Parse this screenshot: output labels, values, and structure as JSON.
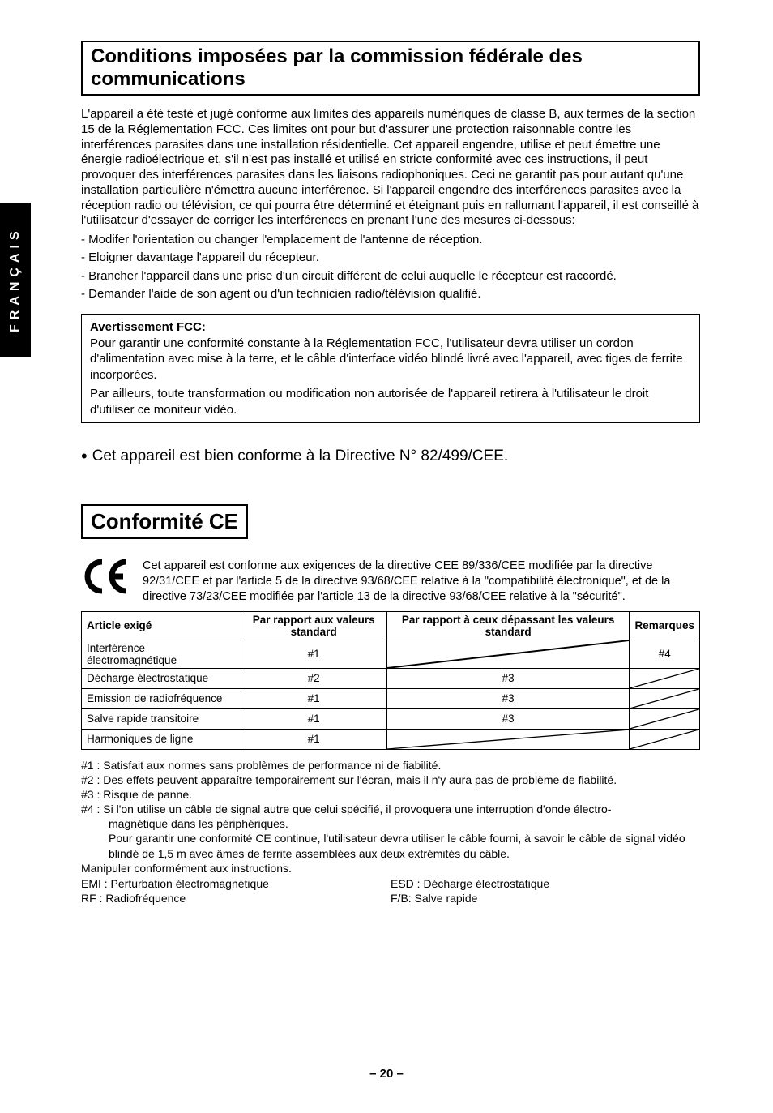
{
  "sideTab": "FRANÇAIS",
  "section1": {
    "title": "Conditions imposées par la commission fédérale des communications",
    "para": "L'appareil a été testé et jugé conforme aux limites des appareils numériques de classe B, aux termes de la section 15 de la Réglementation FCC. Ces limites ont pour but d'assurer une protection raisonnable contre les interférences parasites dans une installation résidentielle. Cet appareil engendre, utilise et peut émettre une énergie radioélectrique et, s'il n'est pas installé et utilisé en stricte conformité avec ces instructions, il peut provoquer des interférences parasites dans les liaisons radiophoniques. Ceci ne garantit pas pour autant qu'une installation particulière n'émettra aucune interférence. Si l'appareil engendre des interférences parasites avec la réception radio ou télévision, ce qui pourra être déterminé et éteignant puis en rallumant l'appareil, il est conseillé à l'utilisateur d'essayer de corriger les interférences en prenant l'une des mesures ci-dessous:",
    "bullets": [
      "- Modifer l'orientation ou changer l'emplacement de l'antenne de réception.",
      "- Eloigner davantage l'appareil du récepteur.",
      "- Brancher l'appareil dans une prise d'un circuit différent de celui auquelle le récepteur est raccordé.",
      "- Demander l'aide de son agent ou d'un technicien radio/télévision qualifié."
    ],
    "fccBox": {
      "title": "Avertissement FCC:",
      "p1": "Pour garantir une conformité constante à la Réglementation FCC, l'utilisateur devra utiliser un cordon d'alimentation avec mise à la terre, et le câble d'interface vidéo blindé livré avec l'appareil, avec tiges de ferrite incorporées.",
      "p2": "Par ailleurs, toute transformation ou modification non autorisée de l'appareil retirera à l'utilisateur le droit d'utiliser ce moniteur vidéo."
    }
  },
  "directive": "Cet appareil est bien conforme à la Directive N° 82/499/CEE.",
  "section2": {
    "title": "Conformité CE",
    "ceText": "Cet appareil est conforme aux exigences de la directive CEE 89/336/CEE modifiée par la directive 92/31/CEE et par l'article 5 de la directive 93/68/CEE relative à la \"compatibilité électronique\", et de la directive 73/23/CEE modifiée par l'article 13 de la directive 93/68/CEE relative à la \"sécurité\".",
    "table": {
      "columns": [
        "Article exigé",
        "Par rapport aux valeurs standard",
        "Par rapport à ceux dépassant les valeurs standard",
        "Remarques"
      ],
      "colWidthsPct": [
        26,
        24,
        40,
        10
      ],
      "rows": [
        {
          "c0": "Interférence électromagnétique",
          "c1": "#1",
          "c2": "diag",
          "c3": "#4"
        },
        {
          "c0": "Décharge électrostatique",
          "c1": "#2",
          "c2": "#3",
          "c3": "diag"
        },
        {
          "c0": "Emission de radiofréquence",
          "c1": "#1",
          "c2": "#3",
          "c3": "diag"
        },
        {
          "c0": "Salve rapide transitoire",
          "c1": "#1",
          "c2": "#3",
          "c3": "diag"
        },
        {
          "c0": "Harmoniques de ligne",
          "c1": "#1",
          "c2": "diag",
          "c3": "diag"
        }
      ]
    },
    "notes": [
      "#1 : Satisfait aux normes sans problèmes de performance ni de fiabilité.",
      "#2 : Des effets peuvent apparaître temporairement sur l'écran, mais il n'y aura pas de problème de fiabilité.",
      "#3 : Risque de panne.",
      "#4 : Si l'on utilise un câble de signal autre que celui spécifié, il provoquera une interruption d'onde électro-"
    ],
    "note4b": "magnétique dans les périphériques.",
    "note4c": "Pour garantir une conformité CE continue, l'utilisateur devra utiliser le câble fourni, à savoir le câble de signal vidéo blindé de 1,5 m avec âmes de ferrite assemblées aux deux extrémités du câble.",
    "handle": "Manipuler conformément aux instructions.",
    "abbrev": {
      "l1a": "EMI : Perturbation électromagnétique",
      "l1b": "ESD : Décharge électrostatique",
      "l2a": "RF : Radiofréquence",
      "l2b": "F/B: Salve rapide"
    }
  },
  "pageNumber": "– 20 –",
  "colors": {
    "text": "#000000",
    "background": "#ffffff",
    "border": "#000000"
  }
}
